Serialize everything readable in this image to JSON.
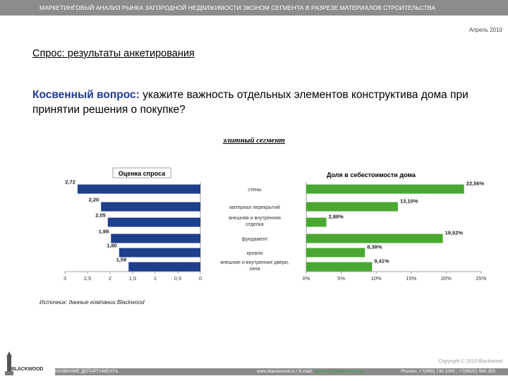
{
  "header": {
    "title": "МАРКЕТИНГОВЫЙ АНАЛИЗ РЫНКА ЗАГОРОДНОЙ НЕДВИЖИМОСТИ ЭКОНОМ СЕГМЕНТА В РАЗРЕЗЕ МАТЕРИАЛОВ СТРОИТЕЛЬСТВА",
    "date": "Апрель 2010"
  },
  "section_title": "Спрос: результаты анкетирования",
  "question": {
    "lead": "Косвенный вопрос:",
    "text": " укажите важность отдельных элементов конструктива дома при принятии решения о покупке?"
  },
  "segment_label": "элитный сегмент",
  "chart_data": [
    {
      "type": "bar",
      "orientation": "horizontal",
      "title": "Оценка спроса",
      "categories": [
        "стены",
        "материал перекрытий",
        "внешняя и внутренняя отделка",
        "фундамент",
        "кровля",
        "внешние и внутренние двери, окна"
      ],
      "values": [
        2.72,
        2.2,
        2.05,
        1.98,
        1.8,
        1.59
      ],
      "value_labels": [
        "2,72",
        "2,20",
        "2,05",
        "1,98",
        "1,80",
        "1,59"
      ],
      "xlim": [
        3,
        0
      ],
      "ticks": [
        "3",
        "2,5",
        "2",
        "1,5",
        "1",
        "0,5",
        "0"
      ],
      "reversed_axis": true,
      "color": "#1e3f8c"
    },
    {
      "type": "bar",
      "orientation": "horizontal",
      "title": "Доля в себестоимости дома",
      "categories": [
        "стены",
        "материал перекрытий",
        "внешняя и внутренняя отделка",
        "фундамент",
        "кровля",
        "внешние и внутренние двери, окна"
      ],
      "values": [
        22.56,
        13.1,
        2.88,
        19.52,
        8.39,
        9.41
      ],
      "value_labels": [
        "22,56%",
        "13,10%",
        "2,88%",
        "19,52%",
        "8,39%",
        "9,41%"
      ],
      "xlim": [
        0,
        25
      ],
      "ticks": [
        "0%",
        "5%",
        "10%",
        "15%",
        "20%",
        "25%"
      ],
      "color": "#4aa832"
    }
  ],
  "source": "Источник: данные компании Blackwood",
  "copyright": "Copyright © 2010 Blackwood",
  "logo": {
    "text": "BLACKWOOD",
    "icon": "tower-icon"
  },
  "footer": {
    "department": "НАЗВАНИЕ ДЕПАРТАМЕНТА",
    "contacts_prefix": "www.blackwood.ru  /  E-mail: ",
    "email": "research@blackwood.ru",
    "phones": "Phones: +7(495) 730 2000 ;  +7(8622) 960 355"
  }
}
